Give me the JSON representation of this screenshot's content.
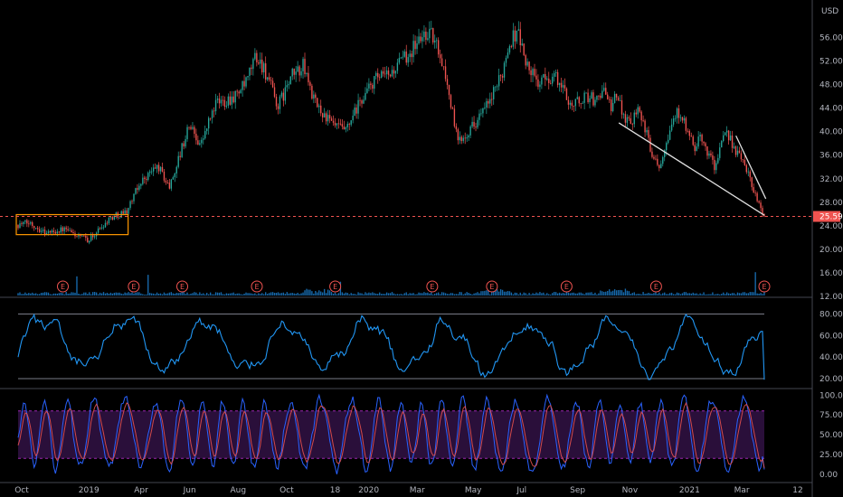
{
  "chart_data": [
    {
      "type": "candlestick",
      "currency_label": "USD",
      "y_ticks": [
        "56.00",
        "52.00",
        "48.00",
        "44.00",
        "40.00",
        "36.00",
        "32.00",
        "28.00",
        "24.00",
        "20.00",
        "16.00",
        "12.00"
      ],
      "ylim": [
        12,
        59
      ],
      "current_price": "25.59",
      "x_ticks": [
        "Oct",
        "2019",
        "Apr",
        "Jun",
        "Aug",
        "Oct",
        "18",
        "2020",
        "Mar",
        "May",
        "Jul",
        "Sep",
        "Nov",
        "2021",
        "Mar",
        "12"
      ],
      "price_path_keyframes": [
        [
          0,
          24.2
        ],
        [
          0.02,
          24.5
        ],
        [
          0.05,
          22.8
        ],
        [
          0.08,
          23.4
        ],
        [
          0.11,
          22.0
        ],
        [
          0.125,
          21.6
        ],
        [
          0.14,
          23.2
        ],
        [
          0.16,
          25.3
        ],
        [
          0.19,
          26.5
        ],
        [
          0.215,
          31.5
        ],
        [
          0.245,
          34.2
        ],
        [
          0.265,
          30.5
        ],
        [
          0.3,
          41.2
        ],
        [
          0.32,
          37.8
        ],
        [
          0.345,
          44.6
        ],
        [
          0.38,
          46.1
        ],
        [
          0.4,
          48.2
        ],
        [
          0.415,
          52.8
        ],
        [
          0.43,
          51.0
        ],
        [
          0.455,
          44.2
        ],
        [
          0.48,
          49.5
        ],
        [
          0.5,
          51.2
        ],
        [
          0.52,
          44.8
        ],
        [
          0.55,
          41.2
        ],
        [
          0.575,
          40.0
        ],
        [
          0.6,
          45.2
        ],
        [
          0.625,
          48.8
        ],
        [
          0.65,
          49.6
        ],
        [
          0.68,
          52.8
        ],
        [
          0.7,
          55.3
        ],
        [
          0.72,
          57.2
        ],
        [
          0.74,
          53.2
        ],
        [
          0.755,
          46.5
        ],
        [
          0.77,
          38.2
        ],
        [
          0.8,
          41.5
        ],
        [
          0.825,
          44.8
        ],
        [
          0.845,
          49.0
        ],
        [
          0.86,
          55.0
        ],
        [
          0.875,
          57.4
        ],
        [
          0.89,
          51.5
        ],
        [
          0.91,
          48.3
        ],
        [
          0.94,
          49.5
        ],
        [
          0.97,
          44.6
        ],
        [
          1.0,
          46.2
        ]
      ],
      "price_path_keyframes_2": [
        [
          0,
          46.2
        ],
        [
          0.04,
          44.9
        ],
        [
          0.08,
          47.8
        ],
        [
          0.12,
          44.1
        ],
        [
          0.16,
          46.0
        ],
        [
          0.2,
          42.8
        ],
        [
          0.24,
          41.5
        ],
        [
          0.28,
          44.9
        ],
        [
          0.32,
          40.2
        ],
        [
          0.36,
          36.5
        ],
        [
          0.4,
          34.2
        ],
        [
          0.44,
          38.5
        ],
        [
          0.48,
          42.2
        ],
        [
          0.52,
          43.6
        ],
        [
          0.56,
          39.8
        ],
        [
          0.6,
          37.2
        ],
        [
          0.64,
          38.9
        ],
        [
          0.68,
          36.4
        ],
        [
          0.72,
          34.0
        ],
        [
          0.76,
          38.4
        ],
        [
          0.8,
          39.6
        ],
        [
          0.84,
          36.1
        ],
        [
          0.88,
          35.4
        ],
        [
          0.92,
          31.8
        ],
        [
          0.96,
          28.5
        ],
        [
          1.0,
          25.59
        ]
      ],
      "annotations": {
        "box": {
          "price_from": 22.5,
          "price_to": 25.9,
          "time_from": 0.0,
          "time_to": 0.145
        },
        "trendline_1": {
          "time_from": 0.805,
          "price_from": 41.5,
          "time_to": 1.0,
          "price_to": 25.8
        },
        "trendline_2": {
          "time_from": 0.962,
          "price_from": 39.3,
          "time_to": 1.002,
          "price_to": 28.6
        }
      },
      "earnings_marker": "E",
      "earnings_positions": [
        0.06,
        0.155,
        0.22,
        0.32,
        0.425,
        0.555,
        0.635,
        0.735,
        0.855,
        1.0
      ]
    },
    {
      "type": "line",
      "y_ticks": [
        "80.00",
        "60.00",
        "40.00",
        "20.00"
      ],
      "ylim": [
        15,
        88
      ],
      "bands": [
        80,
        20
      ]
    },
    {
      "type": "line",
      "y_ticks": [
        "100.00",
        "75.00",
        "50.00",
        "25.00",
        "0.00"
      ],
      "ylim": [
        -6,
        106
      ],
      "bands": [
        80,
        20
      ]
    }
  ],
  "colors": {
    "bull": "#26a69a",
    "bear": "#ef5350",
    "oscillator": "#2196f3",
    "stoch_k": "#2962ff",
    "stoch_d": "#ef5350",
    "band_fill": "#2a0f3a",
    "box": "#ff9800",
    "trendline": "#e0e0e0",
    "price_line": "#ef5350",
    "volume": "#2196f3"
  }
}
